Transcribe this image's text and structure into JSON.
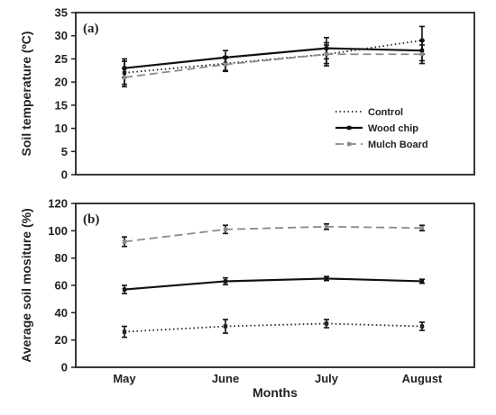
{
  "chart_data": [
    {
      "type": "line",
      "panel_label": "(a)",
      "ylabel": "Soil temperature (ºC)",
      "xlabel": "",
      "categories": [
        "May",
        "June",
        "July",
        "August"
      ],
      "ylim": [
        0,
        35
      ],
      "yticks": [
        0,
        5,
        10,
        15,
        20,
        25,
        30,
        35
      ],
      "show_x_tick_labels": false,
      "grid": false,
      "legend": "center-right",
      "series": [
        {
          "name": "Control",
          "values": [
            22,
            24,
            26,
            29
          ],
          "errors": [
            2.5,
            1.5,
            2,
            3
          ],
          "style": "dotted",
          "color": "#222222"
        },
        {
          "name": "Wood chip",
          "values": [
            23,
            25.3,
            27.3,
            26.8
          ],
          "errors": [
            2,
            1.5,
            2.3,
            2.2
          ],
          "style": "solid",
          "color": "#111111"
        },
        {
          "name": "Mulch Board",
          "values": [
            21,
            23.8,
            26,
            26
          ],
          "errors": [
            2,
            1.5,
            2.5,
            2
          ],
          "style": "dashed",
          "color": "#8a8a8a"
        }
      ]
    },
    {
      "type": "line",
      "panel_label": "(b)",
      "ylabel": "Average soil mositure (%)",
      "xlabel": "Months",
      "categories": [
        "May",
        "June",
        "July",
        "August"
      ],
      "ylim": [
        0,
        120
      ],
      "yticks": [
        0,
        20,
        40,
        60,
        80,
        100,
        120
      ],
      "show_x_tick_labels": true,
      "grid": false,
      "series": [
        {
          "name": "Control",
          "values": [
            26,
            30,
            32,
            30
          ],
          "errors": [
            4,
            5,
            3,
            3
          ],
          "style": "dotted",
          "color": "#222222"
        },
        {
          "name": "Wood chip",
          "values": [
            57,
            63,
            65,
            63
          ],
          "errors": [
            3,
            2.5,
            1.5,
            1.5
          ],
          "style": "solid",
          "color": "#111111"
        },
        {
          "name": "Mulch Board",
          "values": [
            92,
            101,
            103,
            102
          ],
          "errors": [
            3.5,
            3,
            2,
            2
          ],
          "style": "dashed",
          "color": "#8a8a8a"
        }
      ]
    }
  ]
}
